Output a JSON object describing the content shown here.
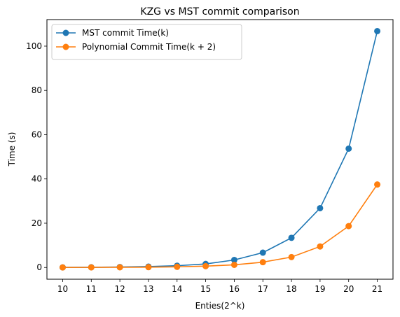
{
  "chart_data": {
    "type": "line",
    "title": "KZG vs MST commit comparison",
    "xlabel": "Enties(2^k)",
    "ylabel": "Time (s)",
    "x": [
      10,
      11,
      12,
      13,
      14,
      15,
      16,
      17,
      18,
      19,
      20,
      21
    ],
    "xlim": [
      9.45,
      21.55
    ],
    "ylim": [
      -5.3,
      112
    ],
    "yticks": [
      0,
      20,
      40,
      60,
      80,
      100
    ],
    "grid": false,
    "legend_position": "top-left",
    "series": [
      {
        "name": "MST commit Time(k)",
        "color": "#1f77b4",
        "marker": "circle",
        "values": [
          0.05,
          0.1,
          0.2,
          0.4,
          0.8,
          1.6,
          3.4,
          6.7,
          13.4,
          26.8,
          53.7,
          106.8
        ]
      },
      {
        "name": "Polynomial Commit Time(k + 2)",
        "color": "#ff7f0e",
        "marker": "circle",
        "values": [
          0.02,
          0.04,
          0.08,
          0.15,
          0.3,
          0.6,
          1.2,
          2.4,
          4.7,
          9.5,
          18.7,
          37.5
        ]
      }
    ]
  }
}
